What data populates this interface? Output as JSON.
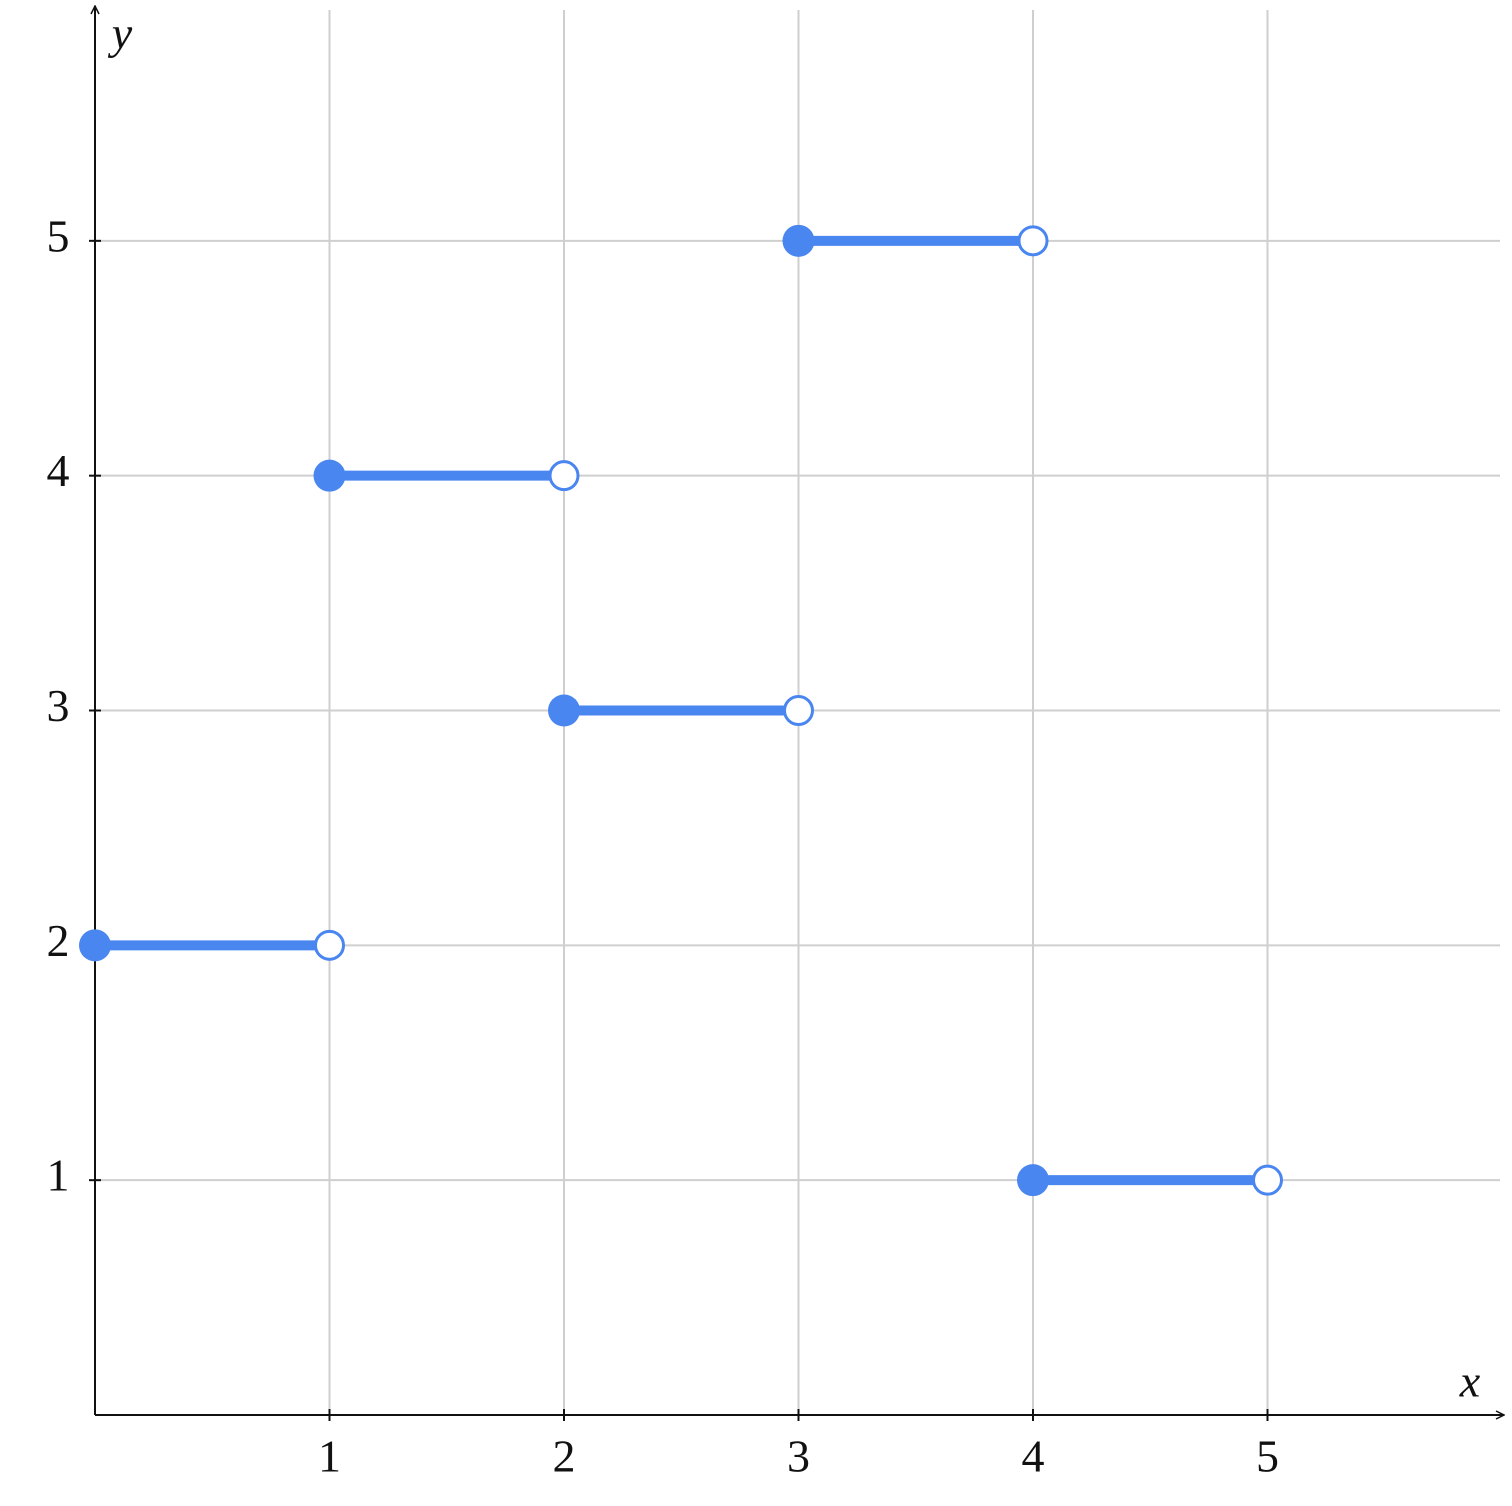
{
  "chart_data": {
    "type": "step",
    "x_label": "x",
    "y_label": "y",
    "x_start": [
      0,
      1,
      2,
      3,
      4
    ],
    "x_end": [
      1,
      2,
      3,
      4,
      5
    ],
    "values": [
      2,
      4,
      3,
      5,
      1
    ],
    "color": "#4a86f0",
    "xlim": [
      0,
      6
    ],
    "ylim": [
      0,
      6
    ],
    "xticks": [
      1,
      2,
      3,
      4,
      5
    ],
    "yticks": [
      1,
      2,
      3,
      4,
      5
    ],
    "grid": true
  }
}
